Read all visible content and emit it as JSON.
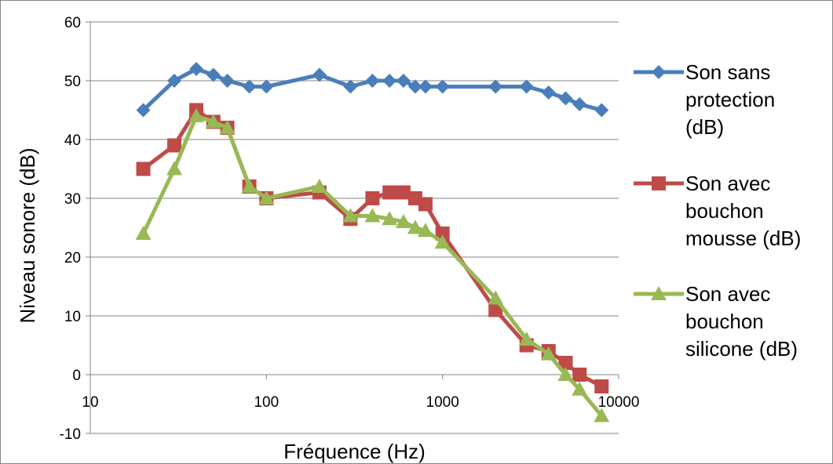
{
  "chart_data": {
    "type": "line",
    "xscale": "log",
    "xlim": [
      10,
      10000
    ],
    "ylim": [
      -10,
      60
    ],
    "x_ticks": [
      "10",
      "100",
      "1000",
      "10000"
    ],
    "y_ticks": [
      "-10",
      "0",
      "10",
      "20",
      "30",
      "40",
      "50",
      "60"
    ],
    "xlabel": "Fréquence (Hz)",
    "ylabel": "Niveau sonore (dB)",
    "grid": "horizontal",
    "legend_position": "right",
    "x": [
      20,
      30,
      40,
      50,
      60,
      80,
      100,
      200,
      300,
      400,
      500,
      600,
      700,
      800,
      1000,
      2000,
      3000,
      4000,
      5000,
      6000,
      8000
    ],
    "series": [
      {
        "name": "Son sans protection (dB)",
        "legend_lines": [
          "Son sans",
          "protection",
          "(dB)"
        ],
        "color": "#4a7ebb",
        "marker": "diamond",
        "values": [
          45,
          50,
          52,
          51,
          50,
          49,
          49,
          51,
          49,
          50,
          50,
          50,
          49,
          49,
          49,
          49,
          49,
          48,
          47,
          46,
          45
        ]
      },
      {
        "name": "Son avec bouchon mousse (dB)",
        "legend_lines": [
          "Son avec",
          "bouchon",
          "mousse (dB)"
        ],
        "color": "#be4b48",
        "marker": "square",
        "values": [
          35,
          39,
          45,
          43,
          42,
          32,
          30,
          31,
          26.5,
          30,
          31,
          31,
          30,
          29,
          24,
          11,
          5,
          4,
          2,
          0,
          -2
        ]
      },
      {
        "name": "Son avec bouchon silicone (dB)",
        "legend_lines": [
          "Son avec",
          "bouchon",
          "silicone (dB)"
        ],
        "color": "#98b954",
        "marker": "triangle",
        "values": [
          24,
          35,
          44,
          43,
          42,
          32,
          30,
          32,
          27,
          27,
          26.5,
          26,
          25,
          24.5,
          22.5,
          13,
          6,
          3.5,
          0,
          -2.5,
          -7
        ]
      }
    ]
  }
}
